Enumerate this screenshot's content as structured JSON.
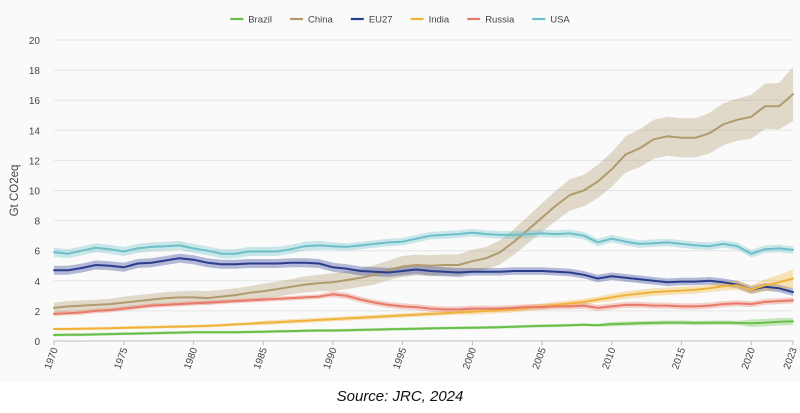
{
  "chart_data": {
    "type": "line",
    "title": "",
    "ylabel": "Gt CO2eq",
    "xlabel": "",
    "ylim": [
      0,
      20
    ],
    "xlim": [
      1970,
      2023
    ],
    "yticks": [
      0,
      2,
      4,
      6,
      8,
      10,
      12,
      14,
      16,
      18,
      20
    ],
    "xticks": [
      1970,
      1975,
      1980,
      1985,
      1990,
      1995,
      2000,
      2005,
      2010,
      2015,
      2020,
      2023
    ],
    "grid": true,
    "legend_position": "top-center",
    "x": [
      1970,
      1971,
      1972,
      1973,
      1974,
      1975,
      1976,
      1977,
      1978,
      1979,
      1980,
      1981,
      1982,
      1983,
      1984,
      1985,
      1986,
      1987,
      1988,
      1989,
      1990,
      1991,
      1992,
      1993,
      1994,
      1995,
      1996,
      1997,
      1998,
      1999,
      2000,
      2001,
      2002,
      2003,
      2004,
      2005,
      2006,
      2007,
      2008,
      2009,
      2010,
      2011,
      2012,
      2013,
      2014,
      2015,
      2016,
      2017,
      2018,
      2019,
      2020,
      2021,
      2022,
      2023
    ],
    "series": [
      {
        "name": "Brazil",
        "color": "#6abf4b",
        "values": [
          0.4,
          0.41,
          0.42,
          0.44,
          0.46,
          0.48,
          0.5,
          0.52,
          0.54,
          0.56,
          0.58,
          0.58,
          0.58,
          0.58,
          0.6,
          0.62,
          0.64,
          0.66,
          0.68,
          0.7,
          0.7,
          0.72,
          0.74,
          0.76,
          0.78,
          0.8,
          0.82,
          0.84,
          0.86,
          0.87,
          0.88,
          0.9,
          0.92,
          0.95,
          0.98,
          1.0,
          1.02,
          1.05,
          1.08,
          1.05,
          1.12,
          1.15,
          1.18,
          1.2,
          1.22,
          1.22,
          1.2,
          1.21,
          1.22,
          1.2,
          1.18,
          1.22,
          1.28,
          1.3
        ],
        "band": [
          0.1,
          0.1,
          0.1,
          0.1,
          0.1,
          0.1,
          0.1,
          0.1,
          0.1,
          0.1,
          0.1,
          0.1,
          0.1,
          0.1,
          0.1,
          0.1,
          0.1,
          0.1,
          0.1,
          0.1,
          0.1,
          0.1,
          0.1,
          0.1,
          0.1,
          0.1,
          0.1,
          0.1,
          0.1,
          0.1,
          0.1,
          0.1,
          0.1,
          0.1,
          0.1,
          0.1,
          0.1,
          0.1,
          0.1,
          0.1,
          0.15,
          0.15,
          0.15,
          0.15,
          0.15,
          0.15,
          0.15,
          0.15,
          0.15,
          0.15,
          0.25,
          0.25,
          0.25,
          0.25
        ]
      },
      {
        "name": "China",
        "color": "#b09a6e",
        "values": [
          2.2,
          2.3,
          2.35,
          2.4,
          2.45,
          2.55,
          2.65,
          2.75,
          2.85,
          2.9,
          2.9,
          2.85,
          2.95,
          3.05,
          3.2,
          3.3,
          3.45,
          3.6,
          3.75,
          3.85,
          3.9,
          4.05,
          4.2,
          4.4,
          4.7,
          4.95,
          5.05,
          5.0,
          5.05,
          5.05,
          5.3,
          5.5,
          5.9,
          6.6,
          7.4,
          8.2,
          9.0,
          9.7,
          10.0,
          10.6,
          11.4,
          12.4,
          12.8,
          13.4,
          13.6,
          13.5,
          13.5,
          13.8,
          14.4,
          14.7,
          14.9,
          15.6,
          15.6,
          16.4
        ],
        "band": [
          0.35,
          0.35,
          0.35,
          0.35,
          0.35,
          0.4,
          0.4,
          0.4,
          0.4,
          0.4,
          0.45,
          0.45,
          0.45,
          0.45,
          0.45,
          0.5,
          0.5,
          0.5,
          0.55,
          0.55,
          0.6,
          0.6,
          0.6,
          0.65,
          0.65,
          0.7,
          0.7,
          0.7,
          0.7,
          0.7,
          0.75,
          0.75,
          0.8,
          0.85,
          0.9,
          0.95,
          1.0,
          1.05,
          1.05,
          1.1,
          1.15,
          1.2,
          1.25,
          1.3,
          1.3,
          1.3,
          1.3,
          1.35,
          1.4,
          1.4,
          1.45,
          1.5,
          1.55,
          1.8
        ]
      },
      {
        "name": "EU27",
        "color": "#2b3d8f",
        "values": [
          4.7,
          4.7,
          4.85,
          5.05,
          5.0,
          4.9,
          5.15,
          5.2,
          5.35,
          5.5,
          5.4,
          5.2,
          5.1,
          5.1,
          5.15,
          5.15,
          5.15,
          5.2,
          5.2,
          5.15,
          4.9,
          4.8,
          4.65,
          4.6,
          4.55,
          4.65,
          4.75,
          4.65,
          4.6,
          4.55,
          4.6,
          4.6,
          4.6,
          4.65,
          4.65,
          4.65,
          4.6,
          4.55,
          4.4,
          4.15,
          4.3,
          4.2,
          4.1,
          4.0,
          3.9,
          3.95,
          3.95,
          4.0,
          3.9,
          3.75,
          3.4,
          3.6,
          3.5,
          3.25
        ],
        "band": [
          0.3,
          0.3,
          0.3,
          0.3,
          0.3,
          0.3,
          0.3,
          0.3,
          0.3,
          0.3,
          0.3,
          0.3,
          0.3,
          0.3,
          0.3,
          0.3,
          0.3,
          0.3,
          0.3,
          0.3,
          0.3,
          0.3,
          0.3,
          0.3,
          0.3,
          0.3,
          0.3,
          0.3,
          0.3,
          0.3,
          0.25,
          0.25,
          0.25,
          0.25,
          0.25,
          0.25,
          0.25,
          0.25,
          0.25,
          0.25,
          0.25,
          0.25,
          0.25,
          0.25,
          0.25,
          0.25,
          0.25,
          0.25,
          0.25,
          0.25,
          0.25,
          0.25,
          0.25,
          0.25
        ]
      },
      {
        "name": "India",
        "color": "#f0b33a",
        "values": [
          0.8,
          0.8,
          0.82,
          0.83,
          0.85,
          0.87,
          0.9,
          0.92,
          0.94,
          0.96,
          0.98,
          1.0,
          1.05,
          1.1,
          1.15,
          1.2,
          1.25,
          1.3,
          1.35,
          1.4,
          1.45,
          1.5,
          1.55,
          1.6,
          1.65,
          1.7,
          1.75,
          1.8,
          1.85,
          1.9,
          1.95,
          2.0,
          2.05,
          2.1,
          2.2,
          2.3,
          2.4,
          2.5,
          2.6,
          2.75,
          2.9,
          3.05,
          3.15,
          3.25,
          3.3,
          3.35,
          3.4,
          3.5,
          3.65,
          3.7,
          3.4,
          3.7,
          3.9,
          4.15
        ],
        "band": [
          0.1,
          0.1,
          0.1,
          0.1,
          0.1,
          0.1,
          0.1,
          0.1,
          0.1,
          0.1,
          0.1,
          0.1,
          0.1,
          0.1,
          0.1,
          0.15,
          0.15,
          0.15,
          0.15,
          0.15,
          0.15,
          0.15,
          0.15,
          0.15,
          0.15,
          0.15,
          0.15,
          0.15,
          0.15,
          0.15,
          0.2,
          0.2,
          0.2,
          0.2,
          0.2,
          0.2,
          0.2,
          0.2,
          0.2,
          0.2,
          0.25,
          0.25,
          0.25,
          0.25,
          0.25,
          0.25,
          0.25,
          0.25,
          0.3,
          0.3,
          0.3,
          0.4,
          0.5,
          0.6
        ]
      },
      {
        "name": "Russia",
        "color": "#e87a6a",
        "values": [
          1.8,
          1.85,
          1.9,
          2.0,
          2.05,
          2.15,
          2.25,
          2.35,
          2.4,
          2.45,
          2.5,
          2.55,
          2.6,
          2.65,
          2.7,
          2.75,
          2.8,
          2.85,
          2.9,
          2.95,
          3.1,
          3.0,
          2.75,
          2.55,
          2.4,
          2.3,
          2.25,
          2.15,
          2.1,
          2.1,
          2.15,
          2.15,
          2.15,
          2.2,
          2.25,
          2.25,
          2.3,
          2.3,
          2.35,
          2.2,
          2.3,
          2.4,
          2.4,
          2.35,
          2.35,
          2.3,
          2.3,
          2.35,
          2.45,
          2.5,
          2.45,
          2.6,
          2.65,
          2.7
        ],
        "band": [
          0.15,
          0.15,
          0.15,
          0.15,
          0.15,
          0.15,
          0.15,
          0.15,
          0.15,
          0.15,
          0.15,
          0.15,
          0.15,
          0.15,
          0.15,
          0.15,
          0.15,
          0.15,
          0.15,
          0.15,
          0.2,
          0.2,
          0.2,
          0.2,
          0.2,
          0.2,
          0.2,
          0.2,
          0.2,
          0.2,
          0.2,
          0.2,
          0.2,
          0.2,
          0.2,
          0.2,
          0.2,
          0.2,
          0.2,
          0.2,
          0.2,
          0.2,
          0.2,
          0.2,
          0.2,
          0.2,
          0.2,
          0.2,
          0.2,
          0.2,
          0.2,
          0.2,
          0.2,
          0.2
        ]
      },
      {
        "name": "USA",
        "color": "#6cbfc9",
        "values": [
          5.9,
          5.8,
          6.0,
          6.2,
          6.1,
          5.95,
          6.15,
          6.25,
          6.3,
          6.35,
          6.15,
          6.0,
          5.8,
          5.8,
          5.95,
          5.95,
          5.95,
          6.1,
          6.3,
          6.35,
          6.3,
          6.25,
          6.35,
          6.45,
          6.55,
          6.6,
          6.8,
          7.0,
          7.05,
          7.1,
          7.2,
          7.1,
          7.05,
          7.05,
          7.1,
          7.15,
          7.1,
          7.15,
          7.0,
          6.55,
          6.8,
          6.6,
          6.45,
          6.5,
          6.55,
          6.45,
          6.35,
          6.3,
          6.45,
          6.3,
          5.8,
          6.1,
          6.15,
          6.05
        ],
        "band": [
          0.3,
          0.3,
          0.3,
          0.3,
          0.3,
          0.3,
          0.3,
          0.3,
          0.3,
          0.3,
          0.3,
          0.3,
          0.3,
          0.3,
          0.3,
          0.3,
          0.3,
          0.3,
          0.3,
          0.3,
          0.25,
          0.25,
          0.25,
          0.25,
          0.25,
          0.25,
          0.25,
          0.25,
          0.25,
          0.25,
          0.25,
          0.25,
          0.25,
          0.25,
          0.25,
          0.25,
          0.25,
          0.25,
          0.25,
          0.25,
          0.25,
          0.25,
          0.25,
          0.25,
          0.25,
          0.25,
          0.25,
          0.25,
          0.25,
          0.25,
          0.25,
          0.25,
          0.25,
          0.25
        ]
      }
    ]
  },
  "source_label": "Source: JRC, 2024"
}
